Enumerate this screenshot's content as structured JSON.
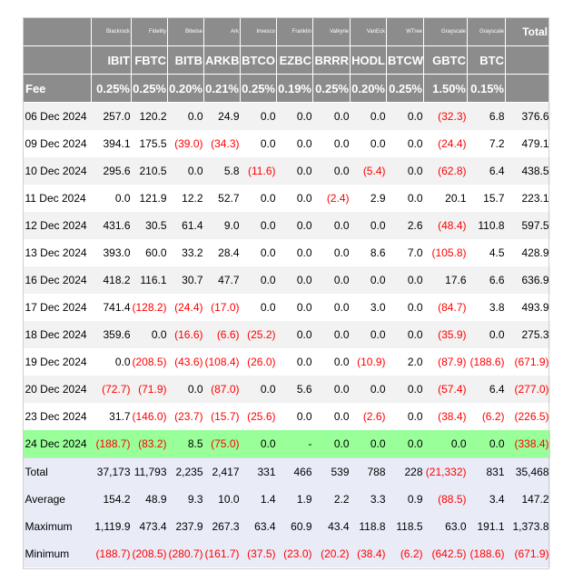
{
  "issuers": [
    "",
    "Blackrock",
    "Fidelity",
    "Bitwise",
    "Ark",
    "Invesco",
    "Franklin",
    "Valkyrie",
    "VanEck",
    "WTree",
    "Grayscale",
    "Grayscale"
  ],
  "total_label": "Total",
  "tickers": [
    "",
    "IBIT",
    "FBTC",
    "BITB",
    "ARKB",
    "BTCO",
    "EZBC",
    "BRRR",
    "HODL",
    "BTCW",
    "GBTC",
    "BTC"
  ],
  "fee_label": "Fee",
  "fees": [
    "0.25%",
    "0.25%",
    "0.20%",
    "0.21%",
    "0.25%",
    "0.19%",
    "0.25%",
    "0.20%",
    "0.25%",
    "1.50%",
    "0.15%",
    ""
  ],
  "rows": [
    {
      "date": "06 Dec 2024",
      "values": [
        "257.0",
        "120.2",
        "0.0",
        "24.9",
        "0.0",
        "0.0",
        "0.0",
        "0.0",
        "0.0",
        "(32.3)",
        "6.8",
        "376.6"
      ]
    },
    {
      "date": "09 Dec 2024",
      "values": [
        "394.1",
        "175.5",
        "(39.0)",
        "(34.3)",
        "0.0",
        "0.0",
        "0.0",
        "0.0",
        "0.0",
        "(24.4)",
        "7.2",
        "479.1"
      ]
    },
    {
      "date": "10 Dec 2024",
      "values": [
        "295.6",
        "210.5",
        "0.0",
        "5.8",
        "(11.6)",
        "0.0",
        "0.0",
        "(5.4)",
        "0.0",
        "(62.8)",
        "6.4",
        "438.5"
      ]
    },
    {
      "date": "11 Dec 2024",
      "values": [
        "0.0",
        "121.9",
        "12.2",
        "52.7",
        "0.0",
        "0.0",
        "(2.4)",
        "2.9",
        "0.0",
        "20.1",
        "15.7",
        "223.1"
      ]
    },
    {
      "date": "12 Dec 2024",
      "values": [
        "431.6",
        "30.5",
        "61.4",
        "9.0",
        "0.0",
        "0.0",
        "0.0",
        "0.0",
        "2.6",
        "(48.4)",
        "110.8",
        "597.5"
      ]
    },
    {
      "date": "13 Dec 2024",
      "values": [
        "393.0",
        "60.0",
        "33.2",
        "28.4",
        "0.0",
        "0.0",
        "0.0",
        "8.6",
        "7.0",
        "(105.8)",
        "4.5",
        "428.9"
      ]
    },
    {
      "date": "16 Dec 2024",
      "values": [
        "418.2",
        "116.1",
        "30.7",
        "47.7",
        "0.0",
        "0.0",
        "0.0",
        "0.0",
        "0.0",
        "17.6",
        "6.6",
        "636.9"
      ]
    },
    {
      "date": "17 Dec 2024",
      "values": [
        "741.4",
        "(128.2)",
        "(24.4)",
        "(17.0)",
        "0.0",
        "0.0",
        "0.0",
        "3.0",
        "0.0",
        "(84.7)",
        "3.8",
        "493.9"
      ]
    },
    {
      "date": "18 Dec 2024",
      "values": [
        "359.6",
        "0.0",
        "(16.6)",
        "(6.6)",
        "(25.2)",
        "0.0",
        "0.0",
        "0.0",
        "0.0",
        "(35.9)",
        "0.0",
        "275.3"
      ]
    },
    {
      "date": "19 Dec 2024",
      "values": [
        "0.0",
        "(208.5)",
        "(43.6)",
        "(108.4)",
        "(26.0)",
        "0.0",
        "0.0",
        "(10.9)",
        "2.0",
        "(87.9)",
        "(188.6)",
        "(671.9)"
      ]
    },
    {
      "date": "20 Dec 2024",
      "values": [
        "(72.7)",
        "(71.9)",
        "0.0",
        "(87.0)",
        "0.0",
        "5.6",
        "0.0",
        "0.0",
        "0.0",
        "(57.4)",
        "6.4",
        "(277.0)"
      ]
    },
    {
      "date": "23 Dec 2024",
      "values": [
        "31.7",
        "(146.0)",
        "(23.7)",
        "(15.7)",
        "(25.6)",
        "0.0",
        "0.0",
        "(2.6)",
        "0.0",
        "(38.4)",
        "(6.2)",
        "(226.5)"
      ]
    },
    {
      "date": "24 Dec 2024",
      "values": [
        "(188.7)",
        "(83.2)",
        "8.5",
        "(75.0)",
        "0.0",
        "-",
        "0.0",
        "0.0",
        "0.0",
        "0.0",
        "0.0",
        "(338.4)"
      ],
      "highlight": true
    }
  ],
  "summary": [
    {
      "label": "Total",
      "values": [
        "37,173",
        "11,793",
        "2,235",
        "2,417",
        "331",
        "466",
        "539",
        "788",
        "228",
        "(21,332)",
        "831",
        "35,468"
      ]
    },
    {
      "label": "Average",
      "values": [
        "154.2",
        "48.9",
        "9.3",
        "10.0",
        "1.4",
        "1.9",
        "2.2",
        "3.3",
        "0.9",
        "(88.5)",
        "3.4",
        "147.2"
      ]
    },
    {
      "label": "Maximum",
      "values": [
        "1,119.9",
        "473.4",
        "237.9",
        "267.3",
        "63.4",
        "60.9",
        "43.4",
        "118.8",
        "118.5",
        "63.0",
        "191.1",
        "1,373.8"
      ]
    },
    {
      "label": "Minimum",
      "values": [
        "(188.7)",
        "(208.5)",
        "(280.7)",
        "(161.7)",
        "(37.5)",
        "(23.0)",
        "(20.2)",
        "(38.4)",
        "(6.2)",
        "(642.5)",
        "(188.6)",
        "(671.9)"
      ]
    }
  ],
  "colors": {
    "header_bg": "#8c8c8c",
    "negative": "#ff0000",
    "highlight": "#99ff99",
    "summary_bg": "#e9ecf7",
    "stripe": "#f2f2f2"
  }
}
